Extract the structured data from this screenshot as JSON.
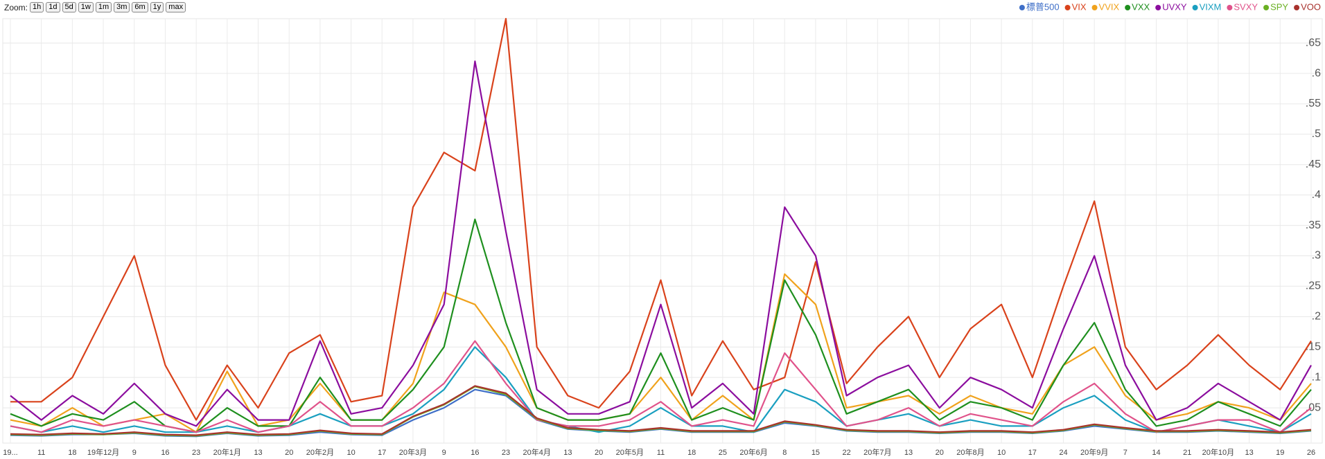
{
  "zoom": {
    "label": "Zoom:",
    "buttons": [
      "1h",
      "1d",
      "5d",
      "1w",
      "1m",
      "3m",
      "6m",
      "1y",
      "max"
    ]
  },
  "chart_data": {
    "type": "line",
    "grid": true,
    "legend": "top-right",
    "categories": [
      "19...",
      "11",
      "18",
      "19年12月",
      "9",
      "16",
      "23",
      "20年1月",
      "13",
      "20",
      "20年2月",
      "10",
      "17",
      "20年3月",
      "9",
      "16",
      "23",
      "20年4月",
      "13",
      "20",
      "20年5月",
      "11",
      "18",
      "25",
      "20年6月",
      "8",
      "15",
      "22",
      "20年7月",
      "13",
      "20",
      "20年8月",
      "10",
      "17",
      "24",
      "20年9月",
      "7",
      "14",
      "21",
      "20年10月",
      "13",
      "19",
      "26"
    ],
    "ylim": [
      -0.008,
      0.69
    ],
    "yticks": [
      {
        "value": 0.05,
        "label": ".05"
      },
      {
        "value": 0.1,
        "label": ".1"
      },
      {
        "value": 0.15,
        "label": ".15"
      },
      {
        "value": 0.2,
        "label": ".2"
      },
      {
        "value": 0.25,
        "label": ".25"
      },
      {
        "value": 0.3,
        "label": ".3"
      },
      {
        "value": 0.35,
        "label": ".35"
      },
      {
        "value": 0.4,
        "label": ".4"
      },
      {
        "value": 0.45,
        "label": ".45"
      },
      {
        "value": 0.5,
        "label": ".5"
      },
      {
        "value": 0.55,
        "label": ".55"
      },
      {
        "value": 0.6,
        "label": ".6"
      },
      {
        "value": 0.65,
        "label": ".65"
      }
    ],
    "series": [
      {
        "name": "標普500",
        "color": "#3f6fc8",
        "values": [
          0.005,
          0.004,
          0.006,
          0.006,
          0.008,
          0.004,
          0.003,
          0.008,
          0.004,
          0.005,
          0.01,
          0.006,
          0.005,
          0.03,
          0.05,
          0.08,
          0.07,
          0.03,
          0.015,
          0.012,
          0.01,
          0.015,
          0.01,
          0.01,
          0.01,
          0.025,
          0.02,
          0.012,
          0.01,
          0.01,
          0.008,
          0.01,
          0.01,
          0.008,
          0.012,
          0.02,
          0.015,
          0.01,
          0.01,
          0.012,
          0.01,
          0.008,
          0.012
        ]
      },
      {
        "name": "VIX",
        "color": "#d9421b",
        "values": [
          0.06,
          0.06,
          0.1,
          0.2,
          0.3,
          0.12,
          0.03,
          0.12,
          0.05,
          0.14,
          0.17,
          0.06,
          0.07,
          0.38,
          0.47,
          0.44,
          0.69,
          0.15,
          0.07,
          0.05,
          0.11,
          0.26,
          0.07,
          0.16,
          0.08,
          0.1,
          0.29,
          0.09,
          0.15,
          0.2,
          0.1,
          0.18,
          0.22,
          0.1,
          0.25,
          0.39,
          0.15,
          0.08,
          0.12,
          0.17,
          0.12,
          0.08,
          0.16
        ]
      },
      {
        "name": "VVIX",
        "color": "#f0a21c",
        "values": [
          0.03,
          0.02,
          0.05,
          0.02,
          0.03,
          0.04,
          0.01,
          0.11,
          0.02,
          0.03,
          0.09,
          0.03,
          0.03,
          0.09,
          0.24,
          0.22,
          0.15,
          0.05,
          0.03,
          0.03,
          0.04,
          0.1,
          0.03,
          0.07,
          0.03,
          0.27,
          0.22,
          0.05,
          0.06,
          0.07,
          0.04,
          0.07,
          0.05,
          0.04,
          0.12,
          0.15,
          0.07,
          0.03,
          0.04,
          0.06,
          0.05,
          0.03,
          0.09
        ]
      },
      {
        "name": "VXX",
        "color": "#1e8f1e",
        "values": [
          0.04,
          0.02,
          0.04,
          0.03,
          0.06,
          0.02,
          0.01,
          0.05,
          0.02,
          0.02,
          0.1,
          0.03,
          0.03,
          0.08,
          0.15,
          0.36,
          0.19,
          0.05,
          0.03,
          0.03,
          0.04,
          0.14,
          0.03,
          0.05,
          0.03,
          0.26,
          0.17,
          0.04,
          0.06,
          0.08,
          0.03,
          0.06,
          0.05,
          0.03,
          0.12,
          0.19,
          0.08,
          0.02,
          0.03,
          0.06,
          0.04,
          0.02,
          0.08
        ]
      },
      {
        "name": "UVXY",
        "color": "#8b0d9e",
        "values": [
          0.07,
          0.03,
          0.07,
          0.04,
          0.09,
          0.04,
          0.02,
          0.08,
          0.03,
          0.03,
          0.16,
          0.04,
          0.05,
          0.12,
          0.22,
          0.62,
          0.34,
          0.08,
          0.04,
          0.04,
          0.06,
          0.22,
          0.05,
          0.09,
          0.04,
          0.38,
          0.3,
          0.07,
          0.1,
          0.12,
          0.05,
          0.1,
          0.08,
          0.05,
          0.18,
          0.3,
          0.12,
          0.03,
          0.05,
          0.09,
          0.06,
          0.03,
          0.12
        ]
      },
      {
        "name": "VIXM",
        "color": "#1a9fc0",
        "values": [
          0.02,
          0.01,
          0.02,
          0.01,
          0.02,
          0.01,
          0.01,
          0.02,
          0.01,
          0.02,
          0.04,
          0.02,
          0.02,
          0.04,
          0.08,
          0.15,
          0.1,
          0.03,
          0.02,
          0.01,
          0.02,
          0.05,
          0.02,
          0.02,
          0.01,
          0.08,
          0.06,
          0.02,
          0.03,
          0.04,
          0.02,
          0.03,
          0.02,
          0.02,
          0.05,
          0.07,
          0.03,
          0.01,
          0.02,
          0.03,
          0.02,
          0.01,
          0.04
        ]
      },
      {
        "name": "SVXY",
        "color": "#e0528a",
        "values": [
          0.02,
          0.01,
          0.03,
          0.02,
          0.03,
          0.02,
          0.01,
          0.03,
          0.01,
          0.02,
          0.06,
          0.02,
          0.02,
          0.05,
          0.09,
          0.16,
          0.09,
          0.03,
          0.02,
          0.02,
          0.03,
          0.06,
          0.02,
          0.03,
          0.02,
          0.14,
          0.08,
          0.02,
          0.03,
          0.05,
          0.02,
          0.04,
          0.03,
          0.02,
          0.06,
          0.09,
          0.04,
          0.01,
          0.02,
          0.03,
          0.03,
          0.01,
          0.05
        ]
      },
      {
        "name": "SPY",
        "color": "#6ab023",
        "values": [
          0.006,
          0.005,
          0.007,
          0.006,
          0.009,
          0.005,
          0.004,
          0.009,
          0.005,
          0.006,
          0.012,
          0.007,
          0.006,
          0.035,
          0.055,
          0.085,
          0.072,
          0.032,
          0.016,
          0.013,
          0.011,
          0.016,
          0.011,
          0.011,
          0.011,
          0.027,
          0.021,
          0.013,
          0.011,
          0.011,
          0.009,
          0.011,
          0.011,
          0.009,
          0.013,
          0.022,
          0.016,
          0.011,
          0.011,
          0.013,
          0.011,
          0.009,
          0.013
        ]
      },
      {
        "name": "VOO",
        "color": "#a8322d",
        "values": [
          0.007,
          0.006,
          0.008,
          0.007,
          0.01,
          0.006,
          0.005,
          0.01,
          0.006,
          0.007,
          0.013,
          0.008,
          0.007,
          0.036,
          0.056,
          0.086,
          0.074,
          0.033,
          0.017,
          0.014,
          0.012,
          0.017,
          0.012,
          0.012,
          0.012,
          0.028,
          0.022,
          0.014,
          0.012,
          0.012,
          0.01,
          0.012,
          0.012,
          0.01,
          0.014,
          0.023,
          0.017,
          0.012,
          0.012,
          0.014,
          0.012,
          0.01,
          0.014
        ]
      }
    ]
  }
}
